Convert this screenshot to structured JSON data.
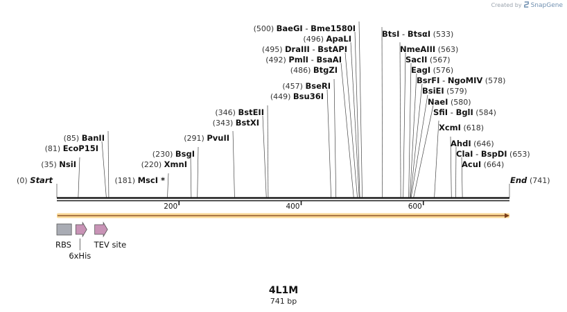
{
  "credit": {
    "prefix": "Created by",
    "brand": "SnapGene"
  },
  "plasmid": {
    "name": "4L1M",
    "length_label": "741 bp",
    "length": 741
  },
  "ends": [
    {
      "label": "Start",
      "pos_label": "(0)",
      "pos": 0
    },
    {
      "label": "End",
      "pos_label": "(741)",
      "pos": 741
    }
  ],
  "ticks": [
    {
      "pos": 200,
      "label": "200"
    },
    {
      "pos": 400,
      "label": "400"
    },
    {
      "pos": 600,
      "label": "600"
    }
  ],
  "sites": [
    {
      "pos": 35,
      "pos_label": "(35)",
      "names": [
        "NsiI"
      ]
    },
    {
      "pos": 81,
      "pos_label": "(81)",
      "names": [
        "EcoP15I"
      ]
    },
    {
      "pos": 85,
      "pos_label": "(85)",
      "names": [
        "BanII"
      ]
    },
    {
      "pos": 181,
      "pos_label": "(181)",
      "names": [
        "MscI *"
      ]
    },
    {
      "pos": 220,
      "pos_label": "(220)",
      "names": [
        "XmnI"
      ]
    },
    {
      "pos": 230,
      "pos_label": "(230)",
      "names": [
        "BsgI"
      ]
    },
    {
      "pos": 291,
      "pos_label": "(291)",
      "names": [
        "PvuII"
      ]
    },
    {
      "pos": 343,
      "pos_label": "(343)",
      "names": [
        "BstXI"
      ]
    },
    {
      "pos": 346,
      "pos_label": "(346)",
      "names": [
        "BstEII"
      ]
    },
    {
      "pos": 449,
      "pos_label": "(449)",
      "names": [
        "Bsu36I"
      ]
    },
    {
      "pos": 457,
      "pos_label": "(457)",
      "names": [
        "BseRI"
      ]
    },
    {
      "pos": 486,
      "pos_label": "(486)",
      "names": [
        "BtgZI"
      ]
    },
    {
      "pos": 492,
      "pos_label": "(492)",
      "names": [
        "PmlI",
        "BsaAI"
      ]
    },
    {
      "pos": 495,
      "pos_label": "(495)",
      "names": [
        "DraIII",
        "BstAPI"
      ]
    },
    {
      "pos": 496,
      "pos_label": "(496)",
      "names": [
        "ApaLI"
      ]
    },
    {
      "pos": 500,
      "pos_label": "(500)",
      "names": [
        "BaeGI",
        "Bme1580I"
      ]
    },
    {
      "pos": 533,
      "pos_label": "(533)",
      "names": [
        "BtsI",
        "BtsαI"
      ]
    },
    {
      "pos": 563,
      "pos_label": "(563)",
      "names": [
        "NmeAIII"
      ]
    },
    {
      "pos": 567,
      "pos_label": "(567)",
      "names": [
        "SacII"
      ]
    },
    {
      "pos": 576,
      "pos_label": "(576)",
      "names": [
        "EagI"
      ]
    },
    {
      "pos": 578,
      "pos_label": "(578)",
      "names": [
        "BsrFI",
        "NgoMIV"
      ]
    },
    {
      "pos": 579,
      "pos_label": "(579)",
      "names": [
        "BsiEI"
      ]
    },
    {
      "pos": 580,
      "pos_label": "(580)",
      "names": [
        "NaeI"
      ]
    },
    {
      "pos": 584,
      "pos_label": "(584)",
      "names": [
        "SfiI",
        "BglI"
      ]
    },
    {
      "pos": 618,
      "pos_label": "(618)",
      "names": [
        "XcmI"
      ]
    },
    {
      "pos": 646,
      "pos_label": "(646)",
      "names": [
        "AhdI"
      ]
    },
    {
      "pos": 653,
      "pos_label": "(653)",
      "names": [
        "ClaI",
        "BspDI"
      ]
    },
    {
      "pos": 664,
      "pos_label": "(664)",
      "names": [
        "AcuI"
      ]
    }
  ],
  "orf": {
    "start": 0,
    "end": 741,
    "direction": "forward"
  },
  "features": [
    {
      "label": "RBS",
      "type": "rbs",
      "start": 0,
      "end": 24
    },
    {
      "label": "6xHis",
      "type": "arrow",
      "start": 31,
      "end": 49
    },
    {
      "label": "TEV site",
      "type": "arrow",
      "start": 62,
      "end": 83
    }
  ],
  "colors": {
    "backbone": "#1a1a1a",
    "orf_fill": "#f5b942",
    "orf_arrow": "#7a3e1a",
    "rbs_fill": "#a9acb4",
    "arrow_fill": "#c893b6",
    "site_line": "#444444",
    "label": "#111111",
    "pos_label": "#333333"
  }
}
